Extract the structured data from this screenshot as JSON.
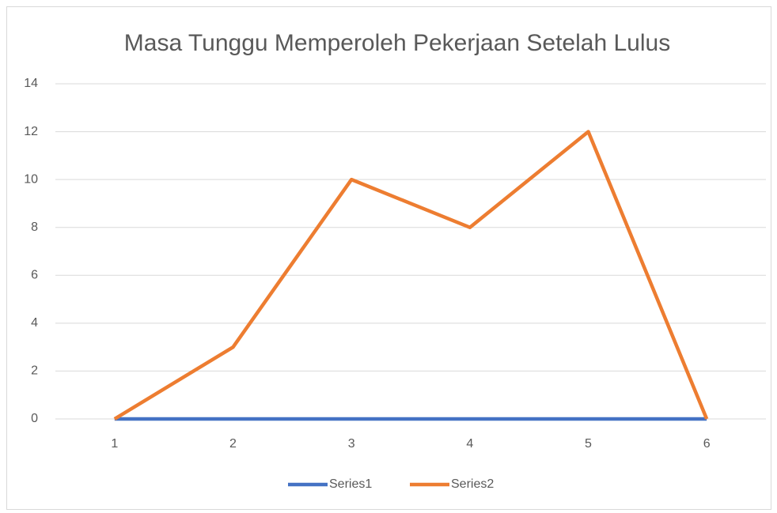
{
  "chart_data": {
    "type": "line",
    "title": "Masa Tunggu Memperoleh Pekerjaan Setelah Lulus",
    "categories": [
      "1",
      "2",
      "3",
      "4",
      "5",
      "6"
    ],
    "series": [
      {
        "name": "Series1",
        "color": "#4472c4",
        "values": [
          0,
          0,
          0,
          0,
          0,
          0
        ]
      },
      {
        "name": "Series2",
        "color": "#ed7d31",
        "values": [
          0,
          3,
          10,
          8,
          12,
          0
        ]
      }
    ],
    "ylim": [
      0,
      14
    ],
    "yticks": [
      0,
      2,
      4,
      6,
      8,
      10,
      12,
      14
    ],
    "grid": true,
    "legend": "bottom"
  }
}
